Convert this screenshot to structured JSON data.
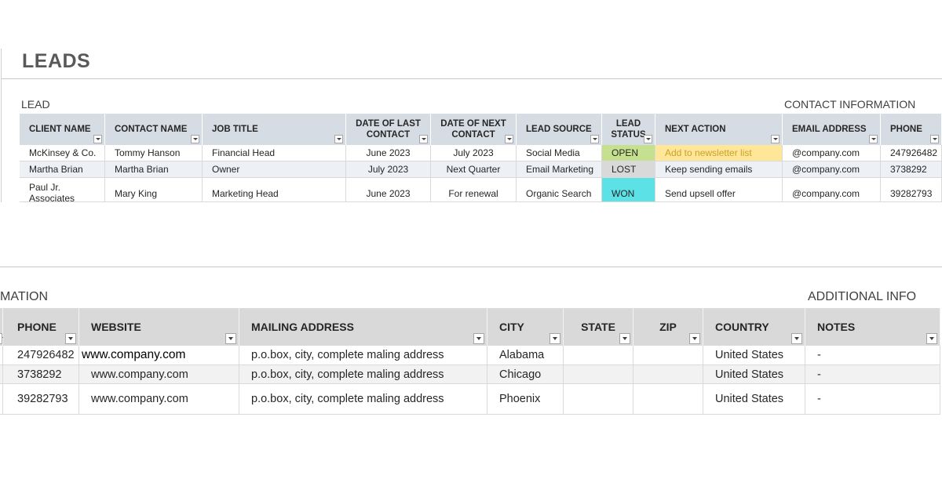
{
  "title": "LEADS",
  "lead_section_label": "LEAD",
  "contact_section_label": "CONTACT INFORMATION",
  "lower_contact_section_label": "MATION",
  "additional_section_label": "ADDITIONAL INFO",
  "top_table": {
    "headers": [
      "CLIENT NAME",
      "CONTACT NAME",
      "JOB TITLE",
      "DATE OF LAST CONTACT",
      "DATE OF NEXT CONTACT",
      "LEAD SOURCE",
      "LEAD STATUS",
      "NEXT ACTION",
      "EMAIL ADDRESS",
      "PHONE"
    ],
    "rows": [
      [
        "McKinsey & Co.",
        "Tommy Hanson",
        "Financial Head",
        "June 2023",
        "July 2023",
        "Social Media",
        "OPEN",
        "Add to newsletter list",
        "@company.com",
        "247926482"
      ],
      [
        "Martha Brian",
        "Martha Brian",
        "Owner",
        "July 2023",
        "Next Quarter",
        "Email Marketing",
        "LOST",
        "Keep sending emails",
        "@company.com",
        "3738292"
      ],
      [
        "Paul Jr. Associates",
        "Mary King",
        "Marketing Head",
        "June 2023",
        "For renewal",
        "Organic Search",
        "WON",
        "Send upsell offer",
        "@company.com",
        "39282793"
      ]
    ]
  },
  "status_colors": {
    "OPEN": "#c5e08f",
    "LOST": "#d9d9d9",
    "WON": "#5ce1e6",
    "next_action_highlight": "#ffe699",
    "next_action_text": "#c9a227"
  },
  "bottom_table": {
    "headers": [
      "PHONE",
      "WEBSITE",
      "MAILING ADDRESS",
      "CITY",
      "STATE",
      "ZIP",
      "COUNTRY",
      "NOTES"
    ],
    "rows": [
      [
        "247926482",
        "www.company.com",
        "p.o.box, city, complete maling address",
        "Alabama",
        "",
        "",
        "United States",
        "-"
      ],
      [
        "3738292",
        "www.company.com",
        "p.o.box, city, complete maling address",
        "Chicago",
        "",
        "",
        "United States",
        "-"
      ],
      [
        "39282793",
        "www.company.com",
        "p.o.box, city, complete maling address",
        "Phoenix",
        "",
        "",
        "United States",
        "-"
      ]
    ]
  }
}
